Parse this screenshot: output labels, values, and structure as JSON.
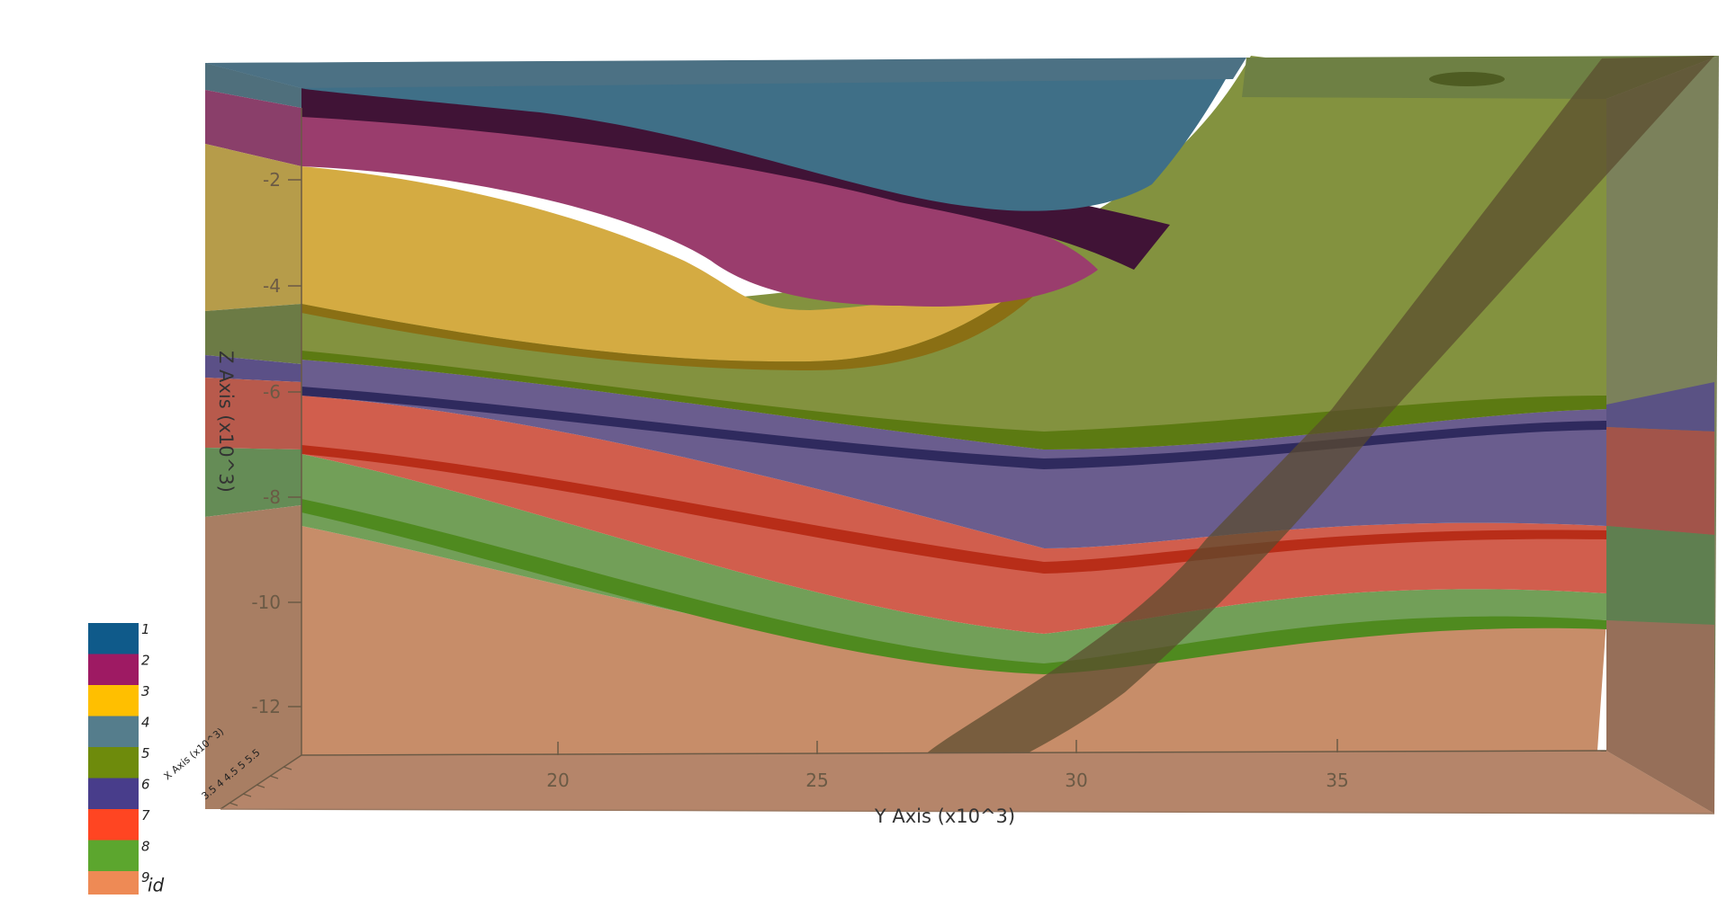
{
  "window": {
    "title": ""
  },
  "axes": {
    "z_title": "Z Axis (x10^3)",
    "y_title": "Y Axis (x10^3)",
    "x_title": "X Axis (x10^3)",
    "x_ticks": "3.5 4 4.5 5 5.5",
    "z_ticks": [
      "-2",
      "-4",
      "-6",
      "-8",
      "-10",
      "-12"
    ],
    "y_ticks": [
      "20",
      "25",
      "30",
      "35"
    ]
  },
  "legend": {
    "title": "id",
    "items": [
      {
        "label": "1",
        "color": "#0f5a8a"
      },
      {
        "label": "2",
        "color": "#9e1a63"
      },
      {
        "label": "3",
        "color": "#ffbf00"
      },
      {
        "label": "4",
        "color": "#557d8c"
      },
      {
        "label": "5",
        "color": "#6e8b0c"
      },
      {
        "label": "6",
        "color": "#483d8b"
      },
      {
        "label": "7",
        "color": "#ff4522"
      },
      {
        "label": "8",
        "color": "#5ca62e"
      },
      {
        "label": "9",
        "color": "#ee8a55"
      }
    ]
  },
  "units": {
    "layer_1_color": "#3f6f87",
    "layer_2_color": "#9a3d6d",
    "layer_3_color": "#d4ab42",
    "layer_5_color": "#83923f",
    "layer_6_color": "#6a5d8e",
    "layer_7_color": "#d15e4d",
    "layer_8_color": "#729f58",
    "layer_9_color": "#c78d69",
    "fault_color": "#5f5236"
  }
}
